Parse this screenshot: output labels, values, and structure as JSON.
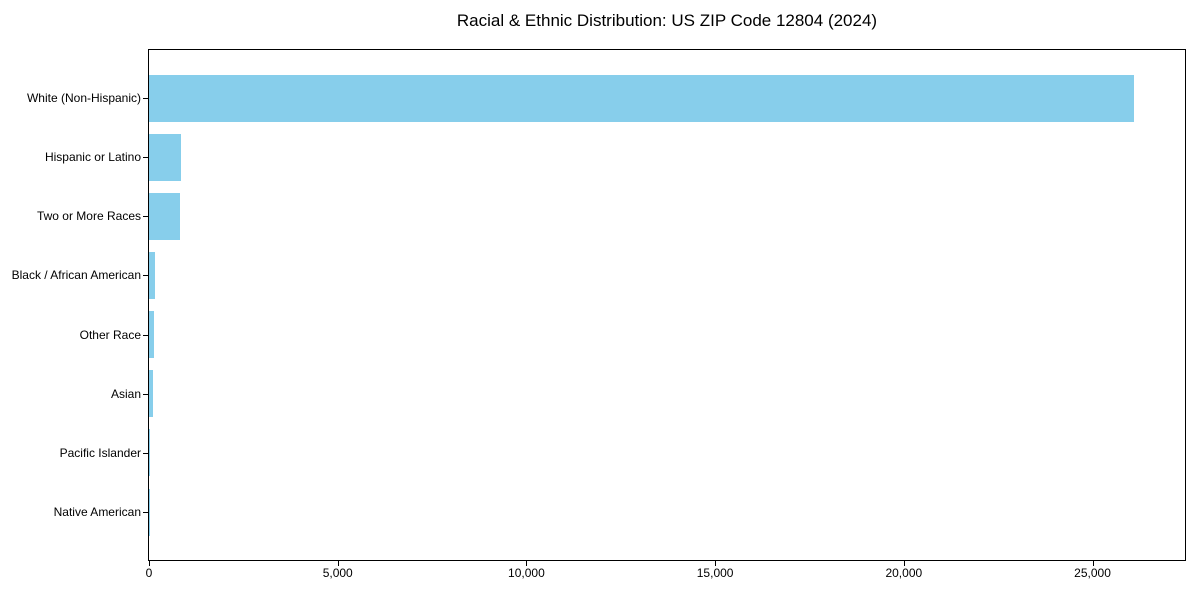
{
  "figure": {
    "background": "#ffffff",
    "title": "Racial & Ethnic Distribution: US ZIP Code 12804 (2024)"
  },
  "chart_data": {
    "type": "bar",
    "orientation": "horizontal",
    "title": "Racial & Ethnic Distribution: US ZIP Code 12804 (2024)",
    "categories": [
      "White (Non-Hispanic)",
      "Hispanic or Latino",
      "Two or More Races",
      "Black / African American",
      "Other Race",
      "Asian",
      "Pacific Islander",
      "Native American"
    ],
    "values": [
      26100,
      850,
      820,
      170,
      130,
      100,
      25,
      5
    ],
    "xlabel": "",
    "ylabel": "",
    "xlim": [
      0,
      27450
    ],
    "x_ticks": [
      {
        "value": 0,
        "label": "0"
      },
      {
        "value": 5000,
        "label": "5,000"
      },
      {
        "value": 10000,
        "label": "10,000"
      },
      {
        "value": 15000,
        "label": "15,000"
      },
      {
        "value": 20000,
        "label": "20,000"
      },
      {
        "value": 25000,
        "label": "25,000"
      }
    ],
    "bar_color": "#87CEEB",
    "grid": false,
    "legend": null,
    "frame_color": "#000000"
  }
}
